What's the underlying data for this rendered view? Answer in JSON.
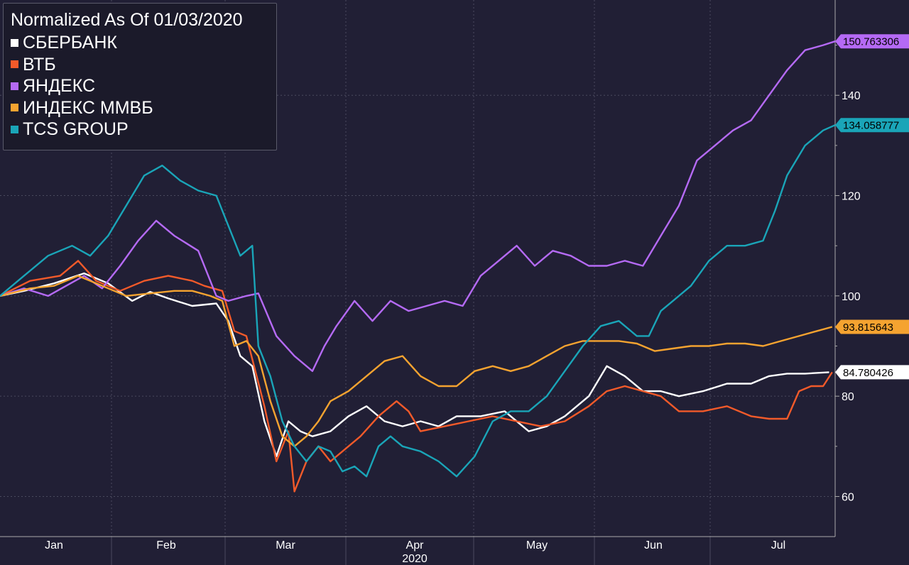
{
  "chart_data": {
    "type": "line",
    "title": "Normalized As Of 01/03/2020",
    "x_labels": [
      "Jan",
      "Feb",
      "Mar",
      "Apr",
      "May",
      "Jun",
      "Jul"
    ],
    "x_year_label": "2020",
    "y_ticks": [
      60,
      80,
      100,
      120,
      140
    ],
    "ylim": [
      52,
      159
    ],
    "xlim": [
      0,
      139
    ],
    "grid": true,
    "legend_position": "top-left",
    "series": [
      {
        "name": "СБЕРБАНК",
        "color": "#ffffff",
        "end_value": 84.780426,
        "end_label": "84.780426",
        "points": [
          [
            0,
            100
          ],
          [
            4,
            101
          ],
          [
            9,
            102.5
          ],
          [
            14,
            104.5
          ],
          [
            18,
            102.5
          ],
          [
            22,
            99
          ],
          [
            25,
            100.8
          ],
          [
            28,
            99.5
          ],
          [
            32,
            98
          ],
          [
            36,
            98.5
          ],
          [
            38,
            95
          ],
          [
            40,
            88
          ],
          [
            42,
            86
          ],
          [
            44,
            75
          ],
          [
            46,
            68
          ],
          [
            48,
            75
          ],
          [
            50,
            73
          ],
          [
            52,
            72
          ],
          [
            55,
            73
          ],
          [
            58,
            76
          ],
          [
            61,
            78
          ],
          [
            64,
            75
          ],
          [
            67,
            74
          ],
          [
            70,
            75
          ],
          [
            73,
            74
          ],
          [
            76,
            76
          ],
          [
            80,
            76
          ],
          [
            84,
            77
          ],
          [
            88,
            73
          ],
          [
            91,
            74
          ],
          [
            94,
            76
          ],
          [
            98,
            80
          ],
          [
            101,
            86
          ],
          [
            104,
            84
          ],
          [
            107,
            81
          ],
          [
            110,
            81
          ],
          [
            113,
            80
          ],
          [
            117,
            81
          ],
          [
            121,
            82.5
          ],
          [
            125,
            82.5
          ],
          [
            128,
            84
          ],
          [
            131,
            84.5
          ],
          [
            134,
            84.5
          ],
          [
            138,
            84.78
          ]
        ]
      },
      {
        "name": "ВТБ",
        "color": "#f25a2a",
        "end_value": 84.780426,
        "end_label": "",
        "points": [
          [
            0,
            100
          ],
          [
            5,
            103
          ],
          [
            10,
            104
          ],
          [
            13,
            107
          ],
          [
            16,
            103
          ],
          [
            20,
            101
          ],
          [
            24,
            103
          ],
          [
            28,
            104
          ],
          [
            32,
            103
          ],
          [
            34,
            102
          ],
          [
            37,
            101
          ],
          [
            39,
            93
          ],
          [
            41,
            92
          ],
          [
            44,
            78
          ],
          [
            46,
            67
          ],
          [
            48,
            73
          ],
          [
            49,
            61
          ],
          [
            51,
            67
          ],
          [
            53,
            70
          ],
          [
            55,
            67
          ],
          [
            57,
            69
          ],
          [
            60,
            72
          ],
          [
            63,
            76
          ],
          [
            66,
            79
          ],
          [
            68,
            77
          ],
          [
            70,
            73
          ],
          [
            74,
            74
          ],
          [
            78,
            75
          ],
          [
            82,
            76
          ],
          [
            86,
            75
          ],
          [
            90,
            74
          ],
          [
            94,
            75
          ],
          [
            98,
            78
          ],
          [
            101,
            81
          ],
          [
            104,
            82
          ],
          [
            107,
            81
          ],
          [
            110,
            80
          ],
          [
            113,
            77
          ],
          [
            117,
            77
          ],
          [
            121,
            78
          ],
          [
            125,
            76
          ],
          [
            128,
            75.5
          ],
          [
            131,
            75.5
          ],
          [
            133,
            81
          ],
          [
            135,
            82
          ],
          [
            137,
            82
          ],
          [
            138.5,
            84.78
          ]
        ]
      },
      {
        "name": "ЯНДЕКС",
        "color": "#b56af5",
        "end_value": 150.763306,
        "end_label": "150.763306",
        "points": [
          [
            0,
            100
          ],
          [
            4,
            101.5
          ],
          [
            8,
            100
          ],
          [
            11,
            102
          ],
          [
            14,
            104
          ],
          [
            17,
            101.5
          ],
          [
            20,
            106
          ],
          [
            23,
            111
          ],
          [
            26,
            115
          ],
          [
            29,
            112
          ],
          [
            31,
            110.5
          ],
          [
            33,
            109
          ],
          [
            36,
            100
          ],
          [
            38,
            99
          ],
          [
            41,
            100
          ],
          [
            43,
            100.5
          ],
          [
            46,
            92
          ],
          [
            49,
            88
          ],
          [
            52,
            85
          ],
          [
            54,
            90
          ],
          [
            56,
            94
          ],
          [
            59,
            99
          ],
          [
            62,
            95
          ],
          [
            65,
            99
          ],
          [
            68,
            97
          ],
          [
            71,
            98
          ],
          [
            74,
            99
          ],
          [
            77,
            98
          ],
          [
            80,
            104
          ],
          [
            83,
            107
          ],
          [
            86,
            110
          ],
          [
            89,
            106
          ],
          [
            92,
            109
          ],
          [
            95,
            108
          ],
          [
            98,
            106
          ],
          [
            101,
            106
          ],
          [
            104,
            107
          ],
          [
            107,
            106
          ],
          [
            110,
            112
          ],
          [
            113,
            118
          ],
          [
            116,
            127
          ],
          [
            119,
            130
          ],
          [
            122,
            133
          ],
          [
            125,
            135
          ],
          [
            128,
            140
          ],
          [
            131,
            145
          ],
          [
            134,
            149
          ],
          [
            137,
            150
          ],
          [
            139,
            150.76
          ]
        ]
      },
      {
        "name": "ИНДЕКС ММВБ",
        "color": "#f5a330",
        "end_value": 93.815643,
        "end_label": "93.815643",
        "points": [
          [
            0,
            100
          ],
          [
            5,
            101.5
          ],
          [
            9,
            102
          ],
          [
            13,
            104
          ],
          [
            17,
            102
          ],
          [
            21,
            100
          ],
          [
            25,
            100.5
          ],
          [
            29,
            101
          ],
          [
            32,
            101
          ],
          [
            35,
            100
          ],
          [
            37,
            99
          ],
          [
            39,
            90
          ],
          [
            41,
            91
          ],
          [
            43,
            88
          ],
          [
            45,
            79
          ],
          [
            47,
            72
          ],
          [
            49,
            70
          ],
          [
            51,
            72
          ],
          [
            53,
            75
          ],
          [
            55,
            79
          ],
          [
            58,
            81
          ],
          [
            61,
            84
          ],
          [
            64,
            87
          ],
          [
            67,
            88
          ],
          [
            70,
            84
          ],
          [
            73,
            82
          ],
          [
            76,
            82
          ],
          [
            79,
            85
          ],
          [
            82,
            86
          ],
          [
            85,
            85
          ],
          [
            88,
            86
          ],
          [
            91,
            88
          ],
          [
            94,
            90
          ],
          [
            97,
            91
          ],
          [
            100,
            91
          ],
          [
            103,
            91
          ],
          [
            106,
            90.5
          ],
          [
            109,
            89
          ],
          [
            112,
            89.5
          ],
          [
            115,
            90
          ],
          [
            118,
            90
          ],
          [
            121,
            90.5
          ],
          [
            124,
            90.5
          ],
          [
            127,
            90
          ],
          [
            130,
            91
          ],
          [
            133,
            92
          ],
          [
            136,
            93
          ],
          [
            138.5,
            93.82
          ]
        ]
      },
      {
        "name": "TCS GROUP",
        "color": "#1aa5b8",
        "end_value": 134.058777,
        "end_label": "134.058777",
        "points": [
          [
            0,
            100
          ],
          [
            4,
            104
          ],
          [
            8,
            108
          ],
          [
            12,
            110
          ],
          [
            15,
            108
          ],
          [
            18,
            112
          ],
          [
            21,
            118
          ],
          [
            24,
            124
          ],
          [
            27,
            126
          ],
          [
            30,
            123
          ],
          [
            33,
            121
          ],
          [
            36,
            120
          ],
          [
            38,
            114
          ],
          [
            40,
            108
          ],
          [
            42,
            110
          ],
          [
            43,
            90
          ],
          [
            45,
            84
          ],
          [
            47,
            75
          ],
          [
            49,
            70
          ],
          [
            51,
            67
          ],
          [
            53,
            70
          ],
          [
            55,
            69
          ],
          [
            57,
            65
          ],
          [
            59,
            66
          ],
          [
            61,
            64
          ],
          [
            63,
            70
          ],
          [
            65,
            72
          ],
          [
            67,
            70
          ],
          [
            70,
            69
          ],
          [
            73,
            67
          ],
          [
            76,
            64
          ],
          [
            79,
            68
          ],
          [
            82,
            75
          ],
          [
            85,
            77
          ],
          [
            88,
            77
          ],
          [
            91,
            80
          ],
          [
            94,
            85
          ],
          [
            97,
            90
          ],
          [
            100,
            94
          ],
          [
            103,
            95
          ],
          [
            106,
            92
          ],
          [
            108,
            92
          ],
          [
            110,
            97
          ],
          [
            112,
            99
          ],
          [
            115,
            102
          ],
          [
            118,
            107
          ],
          [
            121,
            110
          ],
          [
            124,
            110
          ],
          [
            127,
            111
          ],
          [
            129,
            117
          ],
          [
            131,
            124
          ],
          [
            134,
            130
          ],
          [
            137,
            133
          ],
          [
            139,
            134.06
          ]
        ]
      }
    ]
  }
}
